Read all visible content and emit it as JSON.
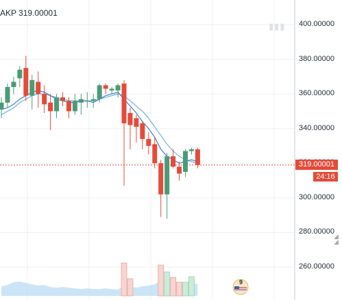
{
  "title": {
    "symbol_fragment": "AKP",
    "price": "319.00001"
  },
  "price_badge": "319.00001",
  "countdown": "24:16",
  "event_count": "9",
  "colors": {
    "up": "#4a9b77",
    "down": "#e34b3b",
    "ma_fast": "#3d7fc4",
    "ma_slow": "#6fb1e0",
    "volume_area": "#b9dcf3",
    "grid": "#eceff2",
    "last_price_line": "#e34b3b"
  },
  "chart_data": {
    "type": "candlestick",
    "y_axis_ticks": [
      "400.00000",
      "380.00000",
      "360.00000",
      "340.00000",
      "320.00000",
      "300.00000",
      "280.00000",
      "260.00000"
    ],
    "y_axis_tick_values": [
      400,
      380,
      360,
      340,
      320,
      300,
      280,
      260
    ],
    "ylim": [
      242,
      415
    ],
    "grid": true,
    "last_price": 319.00001,
    "candles": [
      {
        "o": 351,
        "h": 358,
        "l": 346,
        "c": 355
      },
      {
        "o": 355,
        "h": 366,
        "l": 352,
        "c": 364
      },
      {
        "o": 364,
        "h": 370,
        "l": 360,
        "c": 367
      },
      {
        "o": 369,
        "h": 376,
        "l": 364,
        "c": 374
      },
      {
        "o": 375,
        "h": 382,
        "l": 356,
        "c": 359
      },
      {
        "o": 359,
        "h": 371,
        "l": 351,
        "c": 368
      },
      {
        "o": 367,
        "h": 373,
        "l": 352,
        "c": 360
      },
      {
        "o": 360,
        "h": 365,
        "l": 349,
        "c": 354
      },
      {
        "o": 355,
        "h": 360,
        "l": 339,
        "c": 350
      },
      {
        "o": 350,
        "h": 360,
        "l": 346,
        "c": 358
      },
      {
        "o": 358,
        "h": 361,
        "l": 353,
        "c": 356
      },
      {
        "o": 356,
        "h": 358,
        "l": 346,
        "c": 350
      },
      {
        "o": 350,
        "h": 360,
        "l": 348,
        "c": 356
      },
      {
        "o": 355,
        "h": 360,
        "l": 348,
        "c": 357
      },
      {
        "o": 356,
        "h": 361,
        "l": 352,
        "c": 356
      },
      {
        "o": 356,
        "h": 360,
        "l": 352,
        "c": 357
      },
      {
        "o": 357,
        "h": 366,
        "l": 355,
        "c": 365
      },
      {
        "o": 365,
        "h": 366,
        "l": 360,
        "c": 363
      },
      {
        "o": 362,
        "h": 364,
        "l": 360,
        "c": 363
      },
      {
        "o": 362,
        "h": 366,
        "l": 358,
        "c": 365
      },
      {
        "o": 366,
        "h": 368,
        "l": 307,
        "c": 343
      },
      {
        "o": 349,
        "h": 352,
        "l": 328,
        "c": 342
      },
      {
        "o": 346,
        "h": 348,
        "l": 332,
        "c": 341
      },
      {
        "o": 343,
        "h": 344,
        "l": 328,
        "c": 334
      },
      {
        "o": 334,
        "h": 338,
        "l": 325,
        "c": 330
      },
      {
        "o": 331,
        "h": 335,
        "l": 317,
        "c": 320
      },
      {
        "o": 320,
        "h": 322,
        "l": 289,
        "c": 302
      },
      {
        "o": 302,
        "h": 326,
        "l": 288,
        "c": 324
      },
      {
        "o": 324,
        "h": 328,
        "l": 317,
        "c": 318
      },
      {
        "o": 318,
        "h": 321,
        "l": 310,
        "c": 314
      },
      {
        "o": 315,
        "h": 328,
        "l": 312,
        "c": 327
      },
      {
        "o": 327,
        "h": 329,
        "l": 325,
        "c": 328
      },
      {
        "o": 328,
        "h": 329,
        "l": 317,
        "c": 319
      }
    ],
    "ma_fast": [
      351,
      352,
      354,
      357,
      359,
      361,
      362,
      361,
      359,
      357,
      356,
      355,
      355,
      356,
      356,
      355,
      357,
      359,
      360,
      361,
      357,
      353,
      349,
      344,
      340,
      335,
      328,
      324,
      322,
      320,
      321,
      322,
      321
    ],
    "ma_slow": [
      348,
      350,
      352,
      355,
      357,
      359,
      360,
      360,
      359,
      358,
      357,
      356,
      356,
      356,
      356,
      356,
      357,
      358,
      359,
      360,
      359,
      356,
      353,
      350,
      346,
      341,
      336,
      331,
      327,
      324,
      322,
      321,
      320
    ],
    "volume": [
      14,
      16,
      20,
      21,
      19,
      17,
      15,
      16,
      13,
      12,
      13,
      12,
      11,
      10,
      11,
      10,
      10,
      11,
      10,
      9,
      16,
      14,
      12,
      14,
      15,
      17,
      22,
      20,
      14,
      15,
      18,
      20,
      17
    ],
    "volume_highlight": [
      {
        "index": 20,
        "value": 48
      },
      {
        "index": 21,
        "value": 25
      },
      {
        "index": 26,
        "value": 45
      },
      {
        "index": 27,
        "value": 35
      },
      {
        "index": 28,
        "value": 27
      },
      {
        "index": 29,
        "value": 20
      },
      {
        "index": 30,
        "value": 20
      },
      {
        "index": 31,
        "value": 28
      }
    ]
  }
}
